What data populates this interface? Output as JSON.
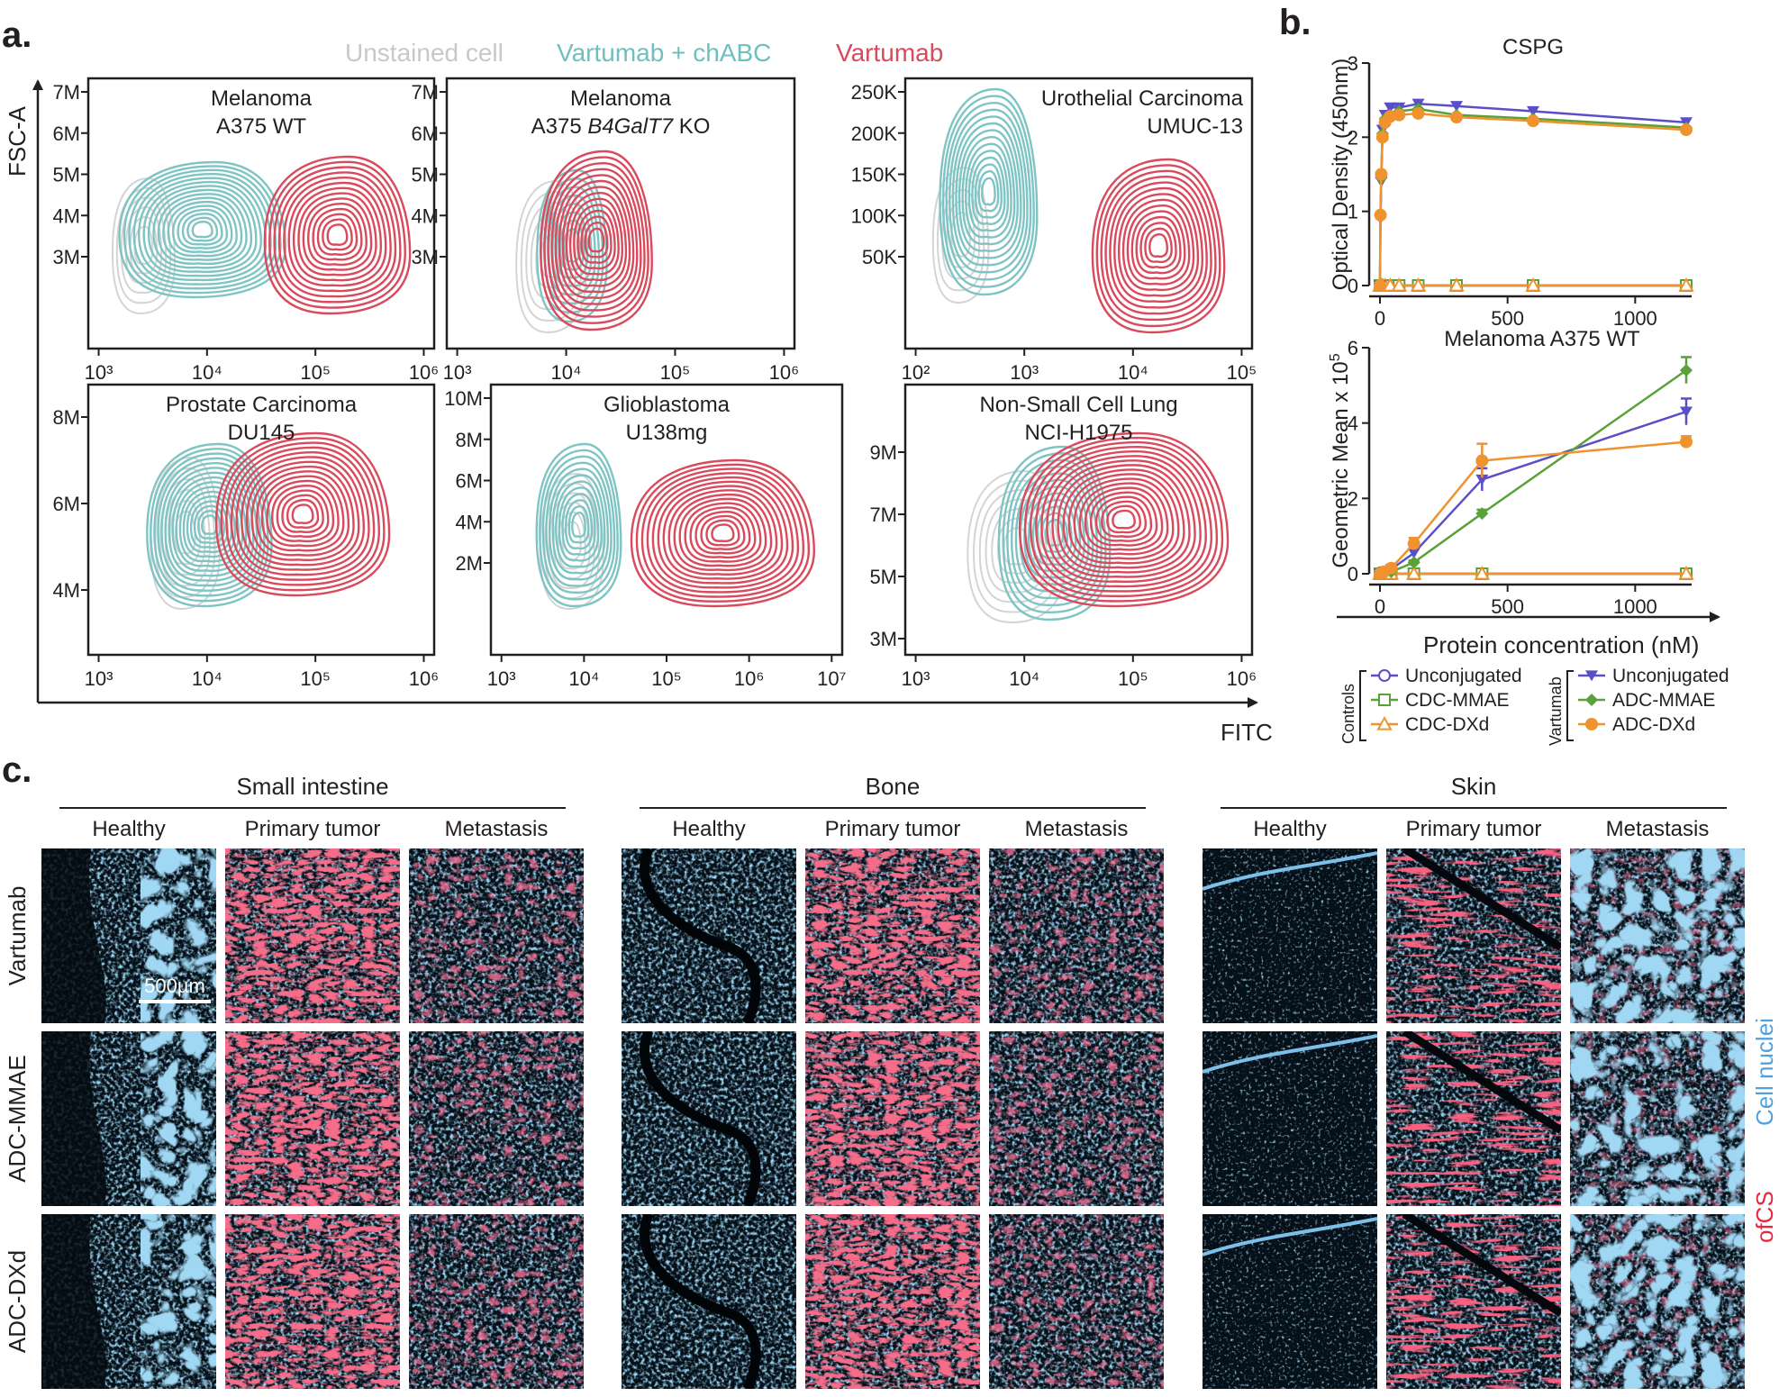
{
  "panel_letters": {
    "a": "a.",
    "b": "b.",
    "c": "c."
  },
  "legend_a": {
    "unstained": "Unstained cell",
    "chabc": "Vartumab + chABC",
    "vartumab": "Vartumab",
    "colors": {
      "unstained": "#cfcfcf",
      "chabc": "#7fc4c4",
      "vartumab": "#d94a5c"
    }
  },
  "axis_a": {
    "ylabel": "FSC-A",
    "xlabel": "FITC"
  },
  "flow_panels": [
    {
      "title1": "Melanoma",
      "title2": "A375 WT",
      "title2_italic": "",
      "title2_suffix": "",
      "yticks": [
        "7M",
        "6M",
        "5M",
        "4M",
        "3M"
      ],
      "xticks": [
        "10³",
        "10⁴",
        "10⁵",
        "10⁶"
      ]
    },
    {
      "title1": "Melanoma",
      "title2": "A375 ",
      "title2_italic": "B4GalT7",
      "title2_suffix": " KO",
      "yticks": [
        "7M",
        "6M",
        "5M",
        "4M",
        "3M"
      ],
      "xticks": [
        "10³",
        "10⁴",
        "10⁵",
        "10⁶"
      ]
    },
    {
      "title1": "Urothelial Carcinoma",
      "title2": "UMUC-13",
      "title2_italic": "",
      "title2_suffix": "",
      "yticks": [
        "250K",
        "200K",
        "150K",
        "100K",
        "50K"
      ],
      "xticks": [
        "10²",
        "10³",
        "10⁴",
        "10⁵"
      ]
    },
    {
      "title1": "Prostate Carcinoma",
      "title2": "DU145",
      "title2_italic": "",
      "title2_suffix": "",
      "yticks": [
        "8M",
        "6M",
        "4M"
      ],
      "xticks": [
        "10³",
        "10⁴",
        "10⁵",
        "10⁶"
      ]
    },
    {
      "title1": "Glioblastoma",
      "title2": "U138mg",
      "title2_italic": "",
      "title2_suffix": "",
      "yticks": [
        "10M",
        "8M",
        "6M",
        "4M",
        "2M"
      ],
      "xticks": [
        "10³",
        "10⁴",
        "10⁵",
        "10⁶",
        "10⁷"
      ]
    },
    {
      "title1": "Non-Small Cell Lung",
      "title2": "NCI-H1975",
      "title2_italic": "",
      "title2_suffix": "",
      "yticks": [
        "9M",
        "7M",
        "5M",
        "3M"
      ],
      "xticks": [
        "10³",
        "10⁴",
        "10⁵",
        "10⁶"
      ]
    }
  ],
  "chart_data": [
    {
      "type": "line",
      "title": "CSPG",
      "ylabel": "Optical Density (450nm)",
      "xlabel": "",
      "xlim": [
        0,
        1200
      ],
      "ylim": [
        0,
        3
      ],
      "xticks": [
        0,
        500,
        1000
      ],
      "yticks": [
        0,
        1,
        2,
        3
      ],
      "series": [
        {
          "name": "Unconjugated",
          "group": "Vartumab",
          "color": "#5b4fc7",
          "marker": "triangle-down",
          "x": [
            0,
            2,
            5,
            10,
            20,
            40,
            75,
            150,
            300,
            600,
            1200
          ],
          "y": [
            0,
            0.9,
            1.4,
            2.1,
            2.3,
            2.4,
            2.4,
            2.45,
            2.42,
            2.35,
            2.2
          ]
        },
        {
          "name": "ADC-MMAE",
          "group": "Vartumab",
          "color": "#5aa13a",
          "marker": "diamond",
          "x": [
            0,
            2,
            5,
            10,
            20,
            40,
            75,
            150,
            300,
            600,
            1200
          ],
          "y": [
            0,
            0.95,
            1.45,
            2.05,
            2.25,
            2.3,
            2.35,
            2.38,
            2.3,
            2.25,
            2.13
          ]
        },
        {
          "name": "ADC-DXd",
          "group": "Vartumab",
          "color": "#f0922e",
          "marker": "circle",
          "x": [
            0,
            2,
            5,
            10,
            20,
            40,
            75,
            150,
            300,
            600,
            1200
          ],
          "y": [
            0,
            0.95,
            1.5,
            2.0,
            2.2,
            2.28,
            2.3,
            2.32,
            2.27,
            2.22,
            2.1
          ]
        },
        {
          "name": "Unconjugated",
          "group": "Controls",
          "color": "#5b4fc7",
          "marker": "open-circle",
          "x": [
            0,
            2,
            5,
            10,
            20,
            40,
            75,
            150,
            300,
            600,
            1200
          ],
          "y": [
            0,
            0,
            0,
            0,
            0,
            0,
            0,
            0,
            0,
            0,
            0
          ]
        },
        {
          "name": "CDC-MMAE",
          "group": "Controls",
          "color": "#5aa13a",
          "marker": "open-square",
          "x": [
            0,
            2,
            5,
            10,
            20,
            40,
            75,
            150,
            300,
            600,
            1200
          ],
          "y": [
            0,
            0,
            0,
            0,
            0,
            0,
            0,
            0,
            0,
            0,
            0
          ]
        },
        {
          "name": "CDC-DXd",
          "group": "Controls",
          "color": "#f0922e",
          "marker": "open-triangle",
          "x": [
            0,
            2,
            5,
            10,
            20,
            40,
            75,
            150,
            300,
            600,
            1200
          ],
          "y": [
            0,
            0,
            0,
            0,
            0,
            0,
            0,
            0,
            0,
            0,
            0
          ]
        }
      ]
    },
    {
      "type": "line",
      "title": "Melanoma A375 WT",
      "ylabel": "Geometric Mean x 10",
      "ylabel_sup": "5",
      "xlabel": "Protein concentration (nM)",
      "xlim": [
        0,
        1200
      ],
      "ylim": [
        0,
        6
      ],
      "xticks": [
        0,
        500,
        1000
      ],
      "yticks": [
        0,
        2,
        4,
        6
      ],
      "series": [
        {
          "name": "Unconjugated",
          "group": "Vartumab",
          "color": "#5b4fc7",
          "marker": "triangle-down",
          "x": [
            0,
            15,
            44,
            133,
            400,
            1200
          ],
          "y": [
            0,
            0.05,
            0.12,
            0.55,
            2.5,
            4.3
          ],
          "err": [
            0,
            0.02,
            0.05,
            0.1,
            0.3,
            0.35
          ]
        },
        {
          "name": "ADC-MMAE",
          "group": "Vartumab",
          "color": "#5aa13a",
          "marker": "diamond",
          "x": [
            0,
            15,
            44,
            133,
            400,
            1200
          ],
          "y": [
            0,
            0.02,
            0.05,
            0.3,
            1.6,
            5.4
          ],
          "err": [
            0,
            0.01,
            0.02,
            0.05,
            0.1,
            0.35
          ]
        },
        {
          "name": "ADC-DXd",
          "group": "Vartumab",
          "color": "#f0922e",
          "marker": "circle",
          "x": [
            0,
            15,
            44,
            133,
            400,
            1200
          ],
          "y": [
            0,
            0.05,
            0.15,
            0.8,
            3.0,
            3.5
          ],
          "err": [
            0,
            0.02,
            0.05,
            0.15,
            0.45,
            0.15
          ]
        },
        {
          "name": "Unconjugated",
          "group": "Controls",
          "color": "#5b4fc7",
          "marker": "open-circle",
          "x": [
            0,
            15,
            44,
            133,
            400,
            1200
          ],
          "y": [
            0,
            0,
            0,
            0,
            0,
            0
          ],
          "err": [
            0,
            0,
            0,
            0,
            0,
            0
          ]
        },
        {
          "name": "CDC-MMAE",
          "group": "Controls",
          "color": "#5aa13a",
          "marker": "open-square",
          "x": [
            0,
            15,
            44,
            133,
            400,
            1200
          ],
          "y": [
            0,
            0,
            0,
            0,
            0,
            0
          ],
          "err": [
            0,
            0,
            0,
            0,
            0,
            0
          ]
        },
        {
          "name": "CDC-DXd",
          "group": "Controls",
          "color": "#f0922e",
          "marker": "open-triangle",
          "x": [
            0,
            15,
            44,
            133,
            400,
            1200
          ],
          "y": [
            0,
            0,
            0,
            0,
            0,
            0
          ],
          "err": [
            0,
            0,
            0,
            0,
            0,
            0
          ]
        }
      ]
    }
  ],
  "legend_b": {
    "controls_label": "Controls",
    "vartumab_label": "Vartumab",
    "controls": [
      "Unconjugated",
      "CDC-MMAE",
      "CDC-DXd"
    ],
    "vartumab": [
      "Unconjugated",
      "ADC-MMAE",
      "ADC-DXd"
    ]
  },
  "panel_c": {
    "tissues": [
      "Small intestine",
      "Bone",
      "Skin"
    ],
    "columns": [
      "Healthy",
      "Primary tumor",
      "Metastasis"
    ],
    "rows": [
      "Vartumab",
      "ADC-MMAE",
      "ADC-DXd"
    ],
    "scale_bar": "500µm",
    "channel_nuclei": "Cell nuclei",
    "channel_ofcs": "ofCS",
    "colors": {
      "nuclei": "#4fa0dc",
      "ofcs": "#e8263c"
    }
  }
}
